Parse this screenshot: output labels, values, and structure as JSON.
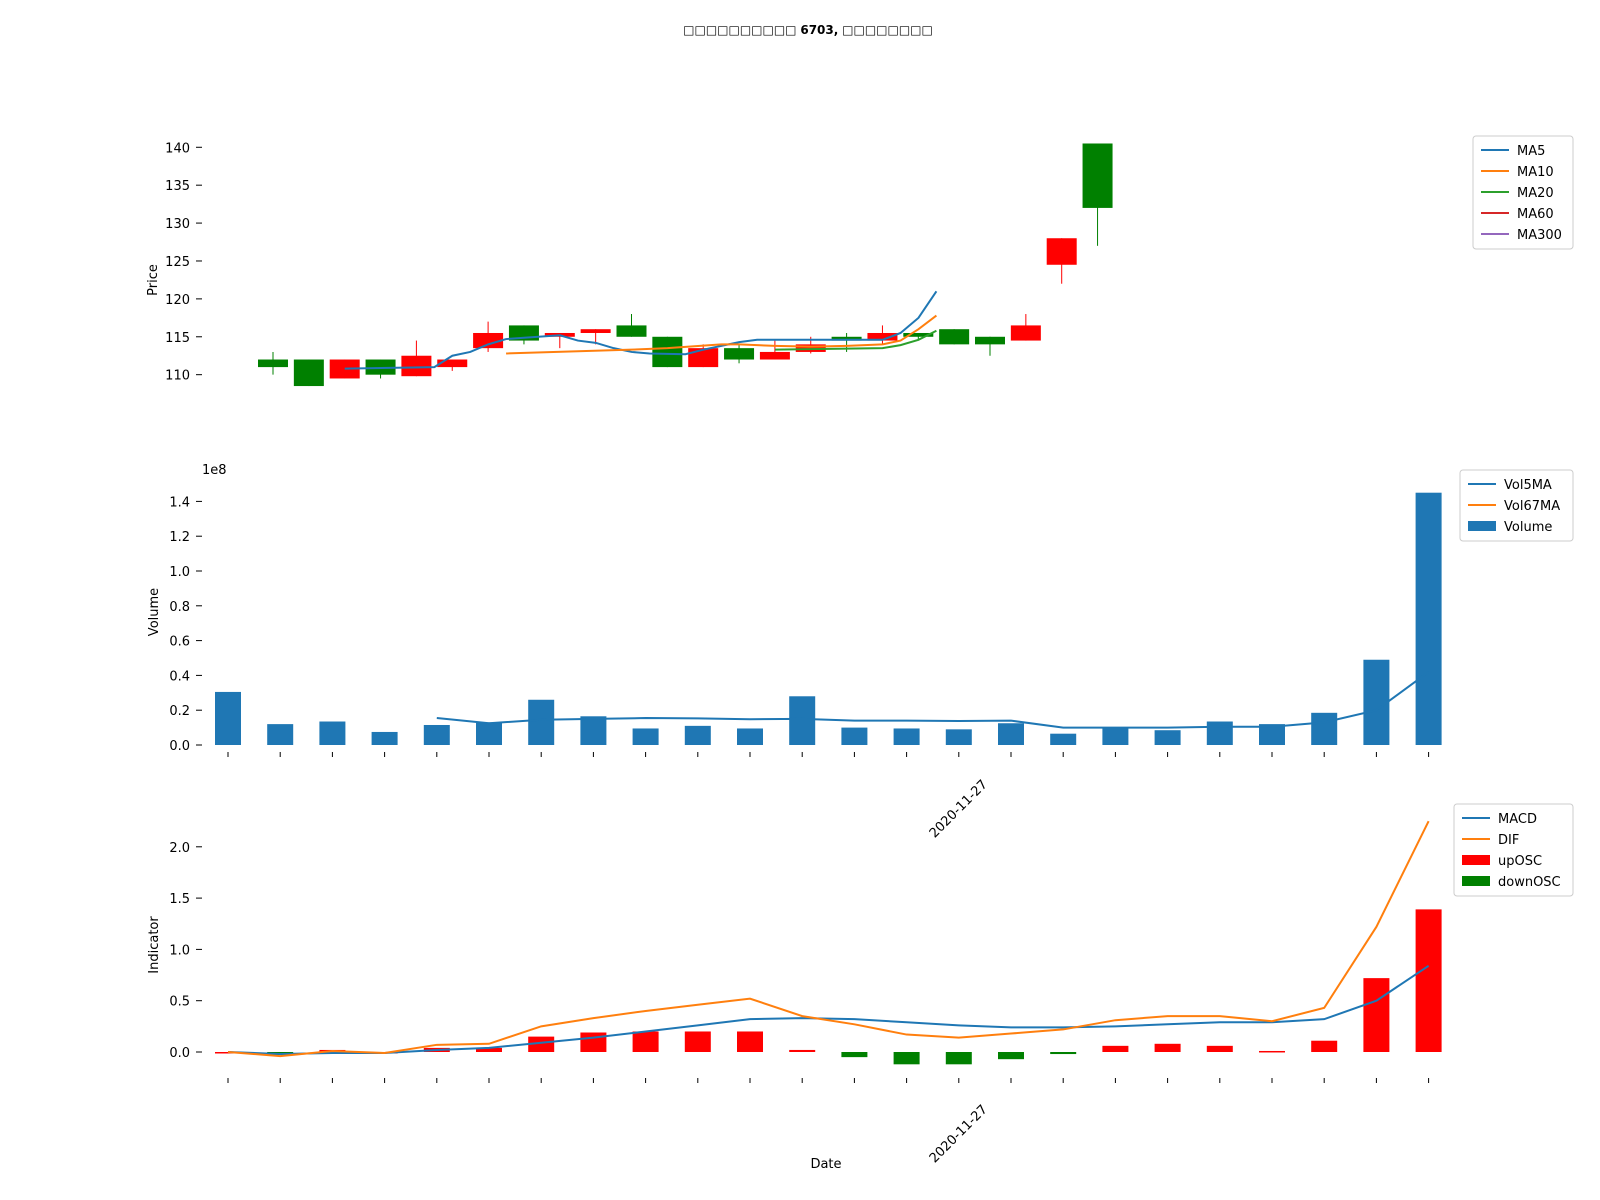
{
  "title_prefix": "□□□□□□□□□□",
  "title_code": "6703,",
  "title_suffix": "□□□□□□□□",
  "colors": {
    "up": "#ff0000",
    "down": "#008000",
    "blue": "#1f77b4",
    "orange": "#ff7f0e",
    "green": "#2ca02c",
    "red": "#d62728",
    "purple": "#9467bd"
  },
  "chart_data": [
    {
      "type": "candlestick",
      "ylabel": "Price",
      "ylim": [
        106,
        143
      ],
      "yticks": [
        110,
        115,
        120,
        125,
        130,
        135,
        140
      ],
      "candles": [
        {
          "o": 111,
          "h": 113,
          "l": 110,
          "c": 112,
          "ca": 0,
          "cb": 0
        },
        {
          "o": 108.5,
          "h": 112,
          "l": 108.5,
          "c": 112,
          "ca": 0,
          "cb": 0
        },
        {
          "o": 112,
          "h": 112,
          "l": 109.5,
          "c": 109.5,
          "ca": 0,
          "cb": 0
        },
        {
          "o": 110,
          "h": 112,
          "l": 109.5,
          "c": 112,
          "ca": 0,
          "cb": 0
        },
        {
          "o": 112.5,
          "h": 114.5,
          "l": 109.8,
          "c": 109.8,
          "ca": 0,
          "cb": 0
        },
        {
          "o": 112,
          "h": 112,
          "l": 110.5,
          "c": 111,
          "ca": 0,
          "cb": 0
        },
        {
          "o": 115.5,
          "h": 117,
          "l": 113,
          "c": 113.5,
          "ca": 0,
          "cb": 0
        },
        {
          "o": 114.5,
          "h": 116.5,
          "l": 114,
          "c": 116.5,
          "ca": 0,
          "cb": 0
        },
        {
          "o": 115.5,
          "h": 115.5,
          "l": 113.5,
          "c": 115,
          "ca": 0,
          "cb": 0
        },
        {
          "o": 116,
          "h": 116,
          "l": 114,
          "c": 115.5,
          "ca": 0,
          "cb": 0
        },
        {
          "o": 115,
          "h": 118,
          "l": 115,
          "c": 116.5,
          "ca": 0,
          "cb": 0
        },
        {
          "o": 111,
          "h": 115,
          "l": 111,
          "c": 115,
          "ca": 0,
          "cb": 0
        },
        {
          "o": 113.5,
          "h": 114,
          "l": 111,
          "c": 111,
          "ca": 0,
          "cb": 0
        },
        {
          "o": 112,
          "h": 114,
          "l": 111.5,
          "c": 113.5,
          "ca": 0,
          "cb": 0
        },
        {
          "o": 113,
          "h": 114.5,
          "l": 112,
          "c": 112,
          "ca": 0,
          "cb": 0
        },
        {
          "o": 114,
          "h": 115,
          "l": 112.8,
          "c": 113,
          "ca": 0,
          "cb": 0
        },
        {
          "o": 114.5,
          "h": 115.5,
          "l": 113,
          "c": 115,
          "ca": 0,
          "cb": 0
        },
        {
          "o": 115.5,
          "h": 116.5,
          "l": 114,
          "c": 114.5,
          "ca": 0,
          "cb": 0
        },
        {
          "o": 115,
          "h": 115.5,
          "l": 114.5,
          "c": 115.5,
          "ca": 0,
          "cb": 0
        },
        {
          "o": 114,
          "h": 116,
          "l": 114,
          "c": 116,
          "ca": 0,
          "cb": 0
        },
        {
          "o": 114,
          "h": 115,
          "l": 112.5,
          "c": 115,
          "ca": 0,
          "cb": 0
        },
        {
          "o": 116.5,
          "h": 118,
          "l": 114.5,
          "c": 114.5,
          "ca": 0,
          "cb": 0
        },
        {
          "o": 128,
          "h": 128,
          "l": 122,
          "c": 124.5,
          "ca": 0,
          "cb": 0
        },
        {
          "o": 132,
          "h": 140.5,
          "l": 127,
          "c": 140.5,
          "ca": 0,
          "cb": 0
        }
      ],
      "series": [
        {
          "name": "MA5",
          "color_key": "blue",
          "points": [
            [
              4,
              110.8
            ],
            [
              9,
              111
            ],
            [
              10,
              112.5
            ],
            [
              11,
              113
            ],
            [
              12,
              114
            ],
            [
              13,
              114.7
            ],
            [
              16,
              115.2
            ],
            [
              17,
              114.5
            ],
            [
              18,
              114.2
            ],
            [
              19,
              113.5
            ],
            [
              20,
              113
            ],
            [
              21,
              112.8
            ],
            [
              23,
              112.7
            ],
            [
              24,
              113.3
            ],
            [
              25,
              113.8
            ],
            [
              26,
              114.3
            ],
            [
              27,
              114.6
            ],
            [
              34,
              114.6
            ],
            [
              35,
              115.5
            ],
            [
              36,
              117.5
            ],
            [
              37,
              121
            ]
          ]
        },
        {
          "name": "MA10",
          "color_key": "orange",
          "points": [
            [
              13,
              112.8
            ],
            [
              20,
              113.3
            ],
            [
              22,
              113.5
            ],
            [
              25,
              114
            ],
            [
              26,
              114
            ],
            [
              28,
              113.8
            ],
            [
              30,
              113.7
            ],
            [
              32,
              113.8
            ],
            [
              34,
              114
            ],
            [
              35,
              114.5
            ],
            [
              36,
              116
            ],
            [
              37,
              117.8
            ]
          ]
        },
        {
          "name": "MA20",
          "color_key": "green",
          "points": [
            [
              28,
              113.3
            ],
            [
              34,
              113.5
            ],
            [
              35,
              113.9
            ],
            [
              36,
              114.6
            ],
            [
              37,
              115.8
            ]
          ]
        },
        {
          "name": "MA60",
          "color_key": "red",
          "points": []
        },
        {
          "name": "MA300",
          "color_key": "purple",
          "points": []
        }
      ],
      "legend_position": "top-right"
    },
    {
      "type": "bar",
      "ylabel": "Volume",
      "scale_label": "1e8",
      "ylim": [
        -0.05,
        1.5
      ],
      "yticks": [
        "0.0",
        "0.2",
        "0.4",
        "0.6",
        "0.8",
        "1.0",
        "1.2",
        "1.4"
      ],
      "values": [
        0.305,
        0.12,
        0.135,
        0.075,
        0.115,
        0.13,
        0.26,
        0.165,
        0.095,
        0.11,
        0.095,
        0.28,
        0.1,
        0.095,
        0.09,
        0.125,
        0.065,
        0.1,
        0.085,
        0.135,
        0.12,
        0.185,
        0.49,
        1.45
      ],
      "series": [
        {
          "name": "Vol5MA",
          "color_key": "blue",
          "values": [
            null,
            null,
            null,
            null,
            0.155,
            0.125,
            0.145,
            0.15,
            0.155,
            0.153,
            0.148,
            0.15,
            0.14,
            0.14,
            0.138,
            0.14,
            0.1,
            0.1,
            0.1,
            0.105,
            0.105,
            0.13,
            0.2,
            0.42
          ]
        },
        {
          "name": "Vol67MA",
          "color_key": "orange",
          "values": []
        }
      ],
      "bar_series_name": "Volume",
      "x_tick_label": "2020-11-27",
      "legend_position": "top-right"
    },
    {
      "type": "bar+line",
      "ylabel": "Indicator",
      "xlabel": "Date",
      "ylim": [
        -0.22,
        2.35
      ],
      "yticks": [
        "0.0",
        "0.5",
        "1.0",
        "1.5",
        "2.0"
      ],
      "osc": [
        0,
        -0.03,
        0.02,
        0.0,
        0.04,
        0.04,
        0.15,
        0.19,
        0.2,
        0.2,
        0.2,
        0.02,
        -0.05,
        -0.12,
        -0.12,
        -0.07,
        -0.02,
        0.06,
        0.08,
        0.06,
        0.01,
        0.11,
        0.72,
        1.39
      ],
      "series": [
        {
          "name": "MACD",
          "color_key": "blue",
          "values": [
            0,
            -0.02,
            -0.01,
            -0.01,
            0.02,
            0.04,
            0.09,
            0.14,
            0.2,
            0.26,
            0.32,
            0.33,
            0.32,
            0.29,
            0.26,
            0.24,
            0.24,
            0.25,
            0.27,
            0.29,
            0.29,
            0.32,
            0.5,
            0.84
          ]
        },
        {
          "name": "DIF",
          "color_key": "orange",
          "values": [
            0,
            -0.04,
            0.01,
            -0.01,
            0.07,
            0.08,
            0.25,
            0.33,
            0.4,
            0.46,
            0.52,
            0.35,
            0.27,
            0.17,
            0.14,
            0.18,
            0.22,
            0.31,
            0.35,
            0.35,
            0.3,
            0.43,
            1.22,
            2.25
          ]
        }
      ],
      "bar_series": [
        {
          "name": "upOSC",
          "color_key": "up"
        },
        {
          "name": "downOSC",
          "color_key": "down"
        }
      ],
      "x_tick_label": "2020-11-27",
      "legend_position": "top-right"
    }
  ]
}
